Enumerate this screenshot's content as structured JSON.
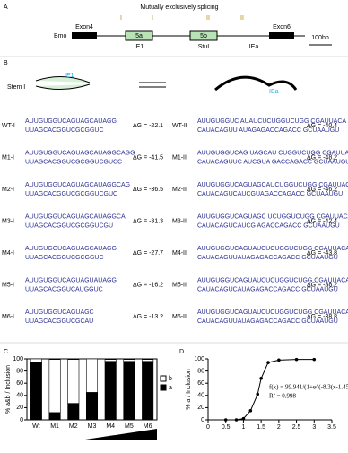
{
  "panel_a": {
    "label": "A",
    "title": "Mutually exclusively splicing",
    "gene": "Bmo",
    "exons": [
      "Exon4",
      "5a",
      "5b",
      "Exon6"
    ],
    "elements": [
      "IE1",
      "StuI",
      "IEa"
    ],
    "stems": [
      "I",
      "I",
      "II",
      "II"
    ],
    "scale": "100bp"
  },
  "panel_b": {
    "label": "B",
    "stem": "Stem I",
    "diagram_labels": [
      "IE1",
      "IEa"
    ],
    "left": [
      {
        "name": "WT-I",
        "top": "AUUGUGGUCAGUAGCAUAGG",
        "bottom": "UUAGCACGGUCGCGGUC",
        "dg": "ΔG = -22.1"
      },
      {
        "name": "M1-I",
        "top": "AUUGUGGUCAGUAGCAUAGGCAGG",
        "bottom": "UUAGCACGGUCGCGGUCGUCC",
        "dg": "ΔG = -41.5"
      },
      {
        "name": "M2-I",
        "top": "AUUGUGGUCAGUAGCAUAGGCAG",
        "bottom": "UUAGCACGGUCGCGGUCGUC",
        "dg": "ΔG = -36.5"
      },
      {
        "name": "M3-I",
        "top": "AUUGUGGUCAGUAGCAUAGGCA",
        "bottom": "UUAGCACGGUCGCGGUCGU",
        "dg": "ΔG = -31.3"
      },
      {
        "name": "M4-I",
        "top": "AUUGUGGUCAGUAGCAUAGG",
        "bottom": "UUAGCACGGUCGCGGUC",
        "dg": "ΔG = -27.7"
      },
      {
        "name": "M5-I",
        "top": "AUUGUGGUCAGUAGUAUAGG",
        "bottom": "UUAGCACGGUCAUGGUC",
        "dg": "ΔG = -16.2"
      },
      {
        "name": "M6-I",
        "top": "AUUGUGGUCAGUAGC",
        "bottom": "UUAGCACGGUCGCAU",
        "dg": "ΔG = -13.2"
      }
    ],
    "right": [
      {
        "name": "WT-II",
        "top": "AUUGUGGUC AUAUCUCUGGUCUGG CGAUUACA",
        "bottom": "CAUACAGUU AUAGAGACCAGACC GCUAAUGU",
        "dg": "ΔG = -40.4"
      },
      {
        "name": "M1-II",
        "top": "AUUGUGGUCAG UAGCAU CUGGUCUGG CGAUUACA",
        "bottom": "CAUACAGUUC AUCGUA GACCAGACC GCUAAUGU",
        "dg": "ΔG = -48.2"
      },
      {
        "name": "M2-II",
        "top": "AUUGUGGUCAGUAGCAUCUGGUCUGG CGAUUACA",
        "bottom": "CAUACAGUCAUCGUAGACCAGACC GCUAAUGU",
        "dg": "ΔG = -46.2"
      },
      {
        "name": "M3-II",
        "top": "AUUGUGGUCAGUAGC UCUGGUCUGG CGAUUACA",
        "bottom": "CAUACAGUCAUCG AGACCAGACC GCUAAUGU",
        "dg": "ΔG = -42.4"
      },
      {
        "name": "M4-II",
        "top": "AUUGUGGUCAGUAUCUCUGGUCUGG CGAUUACA",
        "bottom": "CAUACAGUUAUAGAGACCAGACC GCUAAUGU",
        "dg": "ΔG = -43.8"
      },
      {
        "name": "M5-II",
        "top": "AUUGUGGUCAGUAUCUCUGGUCUGG CGAUUACA",
        "bottom": "CAUACAGUCAUAGAGACCAGACC GCUAAUGU",
        "dg": "ΔG = -38.2"
      },
      {
        "name": "M6-II",
        "top": "AUUGUGGUCAGUAUCUCUGGUCUGG CGAUUACA",
        "bottom": "CAUACAGUUAUAGAGACCAGACC GCUAAUGU",
        "dg": "ΔG = -38.8"
      }
    ]
  },
  "chart_data": [
    {
      "type": "bar",
      "label": "C",
      "y_label": "% a&b / Inclusion",
      "categories": [
        "Wt",
        "M1",
        "M2",
        "M3",
        "M4",
        "M5",
        "M6"
      ],
      "series": [
        {
          "name": "a",
          "color": "#000000",
          "values": [
            95,
            12,
            27,
            45,
            96,
            96,
            96
          ]
        },
        {
          "name": "b",
          "color": "#ffffff",
          "values": [
            5,
            87,
            72,
            55,
            3,
            3,
            3
          ]
        }
      ],
      "ylim": [
        0,
        100
      ],
      "yticks": [
        0,
        20,
        40,
        60,
        80,
        100
      ],
      "stacked": true,
      "legend": "right"
    },
    {
      "type": "scatter",
      "label": "D",
      "y_label": "% a / Inclusion",
      "equation": "f(x) = 99.941/(1+e^(-8.3(x-1.45)))",
      "r2": "R² = 0.998",
      "series": [
        {
          "name": "a",
          "color": "#000000",
          "x": [
            0.5,
            0.8,
            1.0,
            1.2,
            1.4,
            1.5,
            1.7,
            2.0,
            2.5,
            3.0
          ],
          "values": [
            0,
            0,
            2,
            15,
            42,
            68,
            94,
            98,
            99,
            99
          ]
        }
      ],
      "xlim": [
        0,
        3.5
      ],
      "xticks": [
        0,
        0.5,
        1,
        1.5,
        2,
        2.5,
        3,
        3.5
      ],
      "ylim": [
        0,
        100
      ],
      "yticks": [
        0,
        20,
        40,
        60,
        80,
        100
      ]
    }
  ]
}
